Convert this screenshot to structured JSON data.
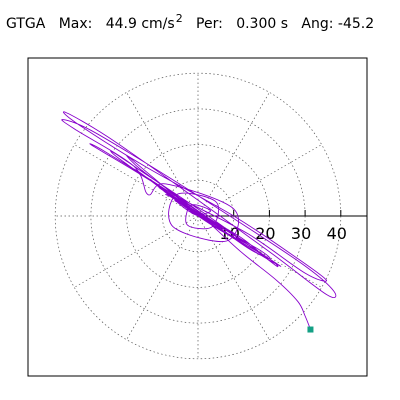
{
  "header": {
    "station": "GTGA",
    "max_label": "Max:",
    "max_value": "44.9 cm/s",
    "max_exponent": "2",
    "period_label": "Per:",
    "period_value": "0.300 s",
    "angle_label": "Ang:",
    "angle_value": "-45.2"
  },
  "colors": {
    "trace": "#8800cc",
    "end_marker": "#14a085",
    "grid": "#555555",
    "axes": "#000000"
  },
  "chart_data": {
    "type": "polar-orbit",
    "radial_ticks": [
      10,
      20,
      30,
      40
    ],
    "radial_tick_labels": [
      "10",
      "20",
      "30",
      "40"
    ],
    "rlim": [
      0,
      50
    ],
    "grid": true,
    "end_point": [
      31.5,
      -31.8
    ],
    "trace_points": [
      [
        0,
        0
      ],
      [
        3.5,
        1.5
      ],
      [
        -2,
        3
      ],
      [
        -3,
        -2.5
      ],
      [
        4,
        -3
      ],
      [
        5,
        4
      ],
      [
        -6,
        6
      ],
      [
        -7,
        -3
      ],
      [
        8,
        -7
      ],
      [
        10,
        2
      ],
      [
        -9,
        9
      ],
      [
        -14,
        6
      ],
      [
        -18,
        14
      ],
      [
        -34,
        24
      ],
      [
        -38,
        27
      ],
      [
        -30,
        24
      ],
      [
        -10,
        12
      ],
      [
        12,
        -2
      ],
      [
        30,
        -14
      ],
      [
        38,
        -21
      ],
      [
        36,
        -22
      ],
      [
        20,
        -10
      ],
      [
        -5,
        8
      ],
      [
        -25,
        22
      ],
      [
        -37,
        29
      ],
      [
        -34,
        26
      ],
      [
        -15,
        14
      ],
      [
        10,
        0
      ],
      [
        28,
        -12
      ],
      [
        36,
        -18
      ],
      [
        30,
        -16
      ],
      [
        14,
        -5
      ],
      [
        -5,
        5
      ],
      [
        -20,
        14
      ],
      [
        -30,
        20
      ],
      [
        -26,
        18
      ],
      [
        -10,
        8
      ],
      [
        8,
        -4
      ],
      [
        20,
        -12
      ],
      [
        23,
        -14
      ],
      [
        16,
        -10
      ],
      [
        2,
        -1
      ],
      [
        -12,
        9
      ],
      [
        -22,
        16
      ],
      [
        -24,
        18
      ],
      [
        -15,
        12
      ],
      [
        0,
        2
      ],
      [
        14,
        -8
      ],
      [
        22,
        -14
      ],
      [
        20,
        -12
      ],
      [
        10,
        -6
      ],
      [
        -3,
        3
      ],
      [
        -14,
        12
      ],
      [
        -20,
        17
      ],
      [
        -16,
        13
      ],
      [
        -5,
        5
      ],
      [
        8,
        -4
      ],
      [
        18,
        -10
      ],
      [
        20,
        -12
      ],
      [
        14,
        -9
      ],
      [
        4,
        -2
      ],
      [
        -8,
        6
      ],
      [
        -16,
        12
      ],
      [
        -18,
        13
      ],
      [
        -10,
        8
      ],
      [
        2,
        0
      ],
      [
        12,
        -6
      ],
      [
        17,
        -10
      ],
      [
        14,
        -8
      ],
      [
        5,
        -3
      ],
      [
        -6,
        5
      ],
      [
        -12,
        9
      ],
      [
        -13,
        10
      ],
      [
        -7,
        5
      ],
      [
        3,
        -1
      ],
      [
        11,
        -6
      ],
      [
        13,
        -7
      ],
      [
        8,
        -5
      ],
      [
        0,
        0
      ],
      [
        -8,
        6
      ],
      [
        -11,
        8
      ],
      [
        -8,
        6
      ],
      [
        0,
        1
      ],
      [
        8,
        -4
      ],
      [
        11,
        -6
      ],
      [
        8,
        -4
      ],
      [
        0,
        0
      ],
      [
        -7,
        5
      ],
      [
        -9,
        6
      ],
      [
        -5,
        4
      ],
      [
        2,
        -1
      ],
      [
        7,
        -3
      ],
      [
        8,
        -4
      ],
      [
        4,
        -2
      ],
      [
        -2,
        2
      ],
      [
        -6,
        4
      ],
      [
        -6,
        4
      ],
      [
        -2,
        1
      ],
      [
        3,
        -1
      ],
      [
        5,
        -2
      ],
      [
        4,
        -2
      ],
      [
        0,
        0
      ],
      [
        -4,
        3
      ],
      [
        -4,
        3
      ],
      [
        -1,
        1
      ],
      [
        3,
        -1
      ],
      [
        4,
        -2
      ],
      [
        2,
        -1
      ],
      [
        -1,
        1
      ],
      [
        -3,
        2
      ],
      [
        -2,
        2
      ],
      [
        1,
        0
      ],
      [
        3,
        -1
      ],
      [
        2,
        -1
      ],
      [
        0,
        0
      ],
      [
        -2,
        2
      ],
      [
        -2,
        1
      ],
      [
        0,
        0
      ],
      [
        2,
        -1
      ],
      [
        2,
        -1
      ],
      [
        0,
        0
      ],
      [
        -1,
        1
      ],
      [
        -1,
        1
      ],
      [
        1,
        0
      ],
      [
        12,
        -10
      ],
      [
        22,
        -18
      ],
      [
        28,
        -24
      ],
      [
        30,
        -28
      ],
      [
        31.5,
        -31.8
      ]
    ]
  }
}
